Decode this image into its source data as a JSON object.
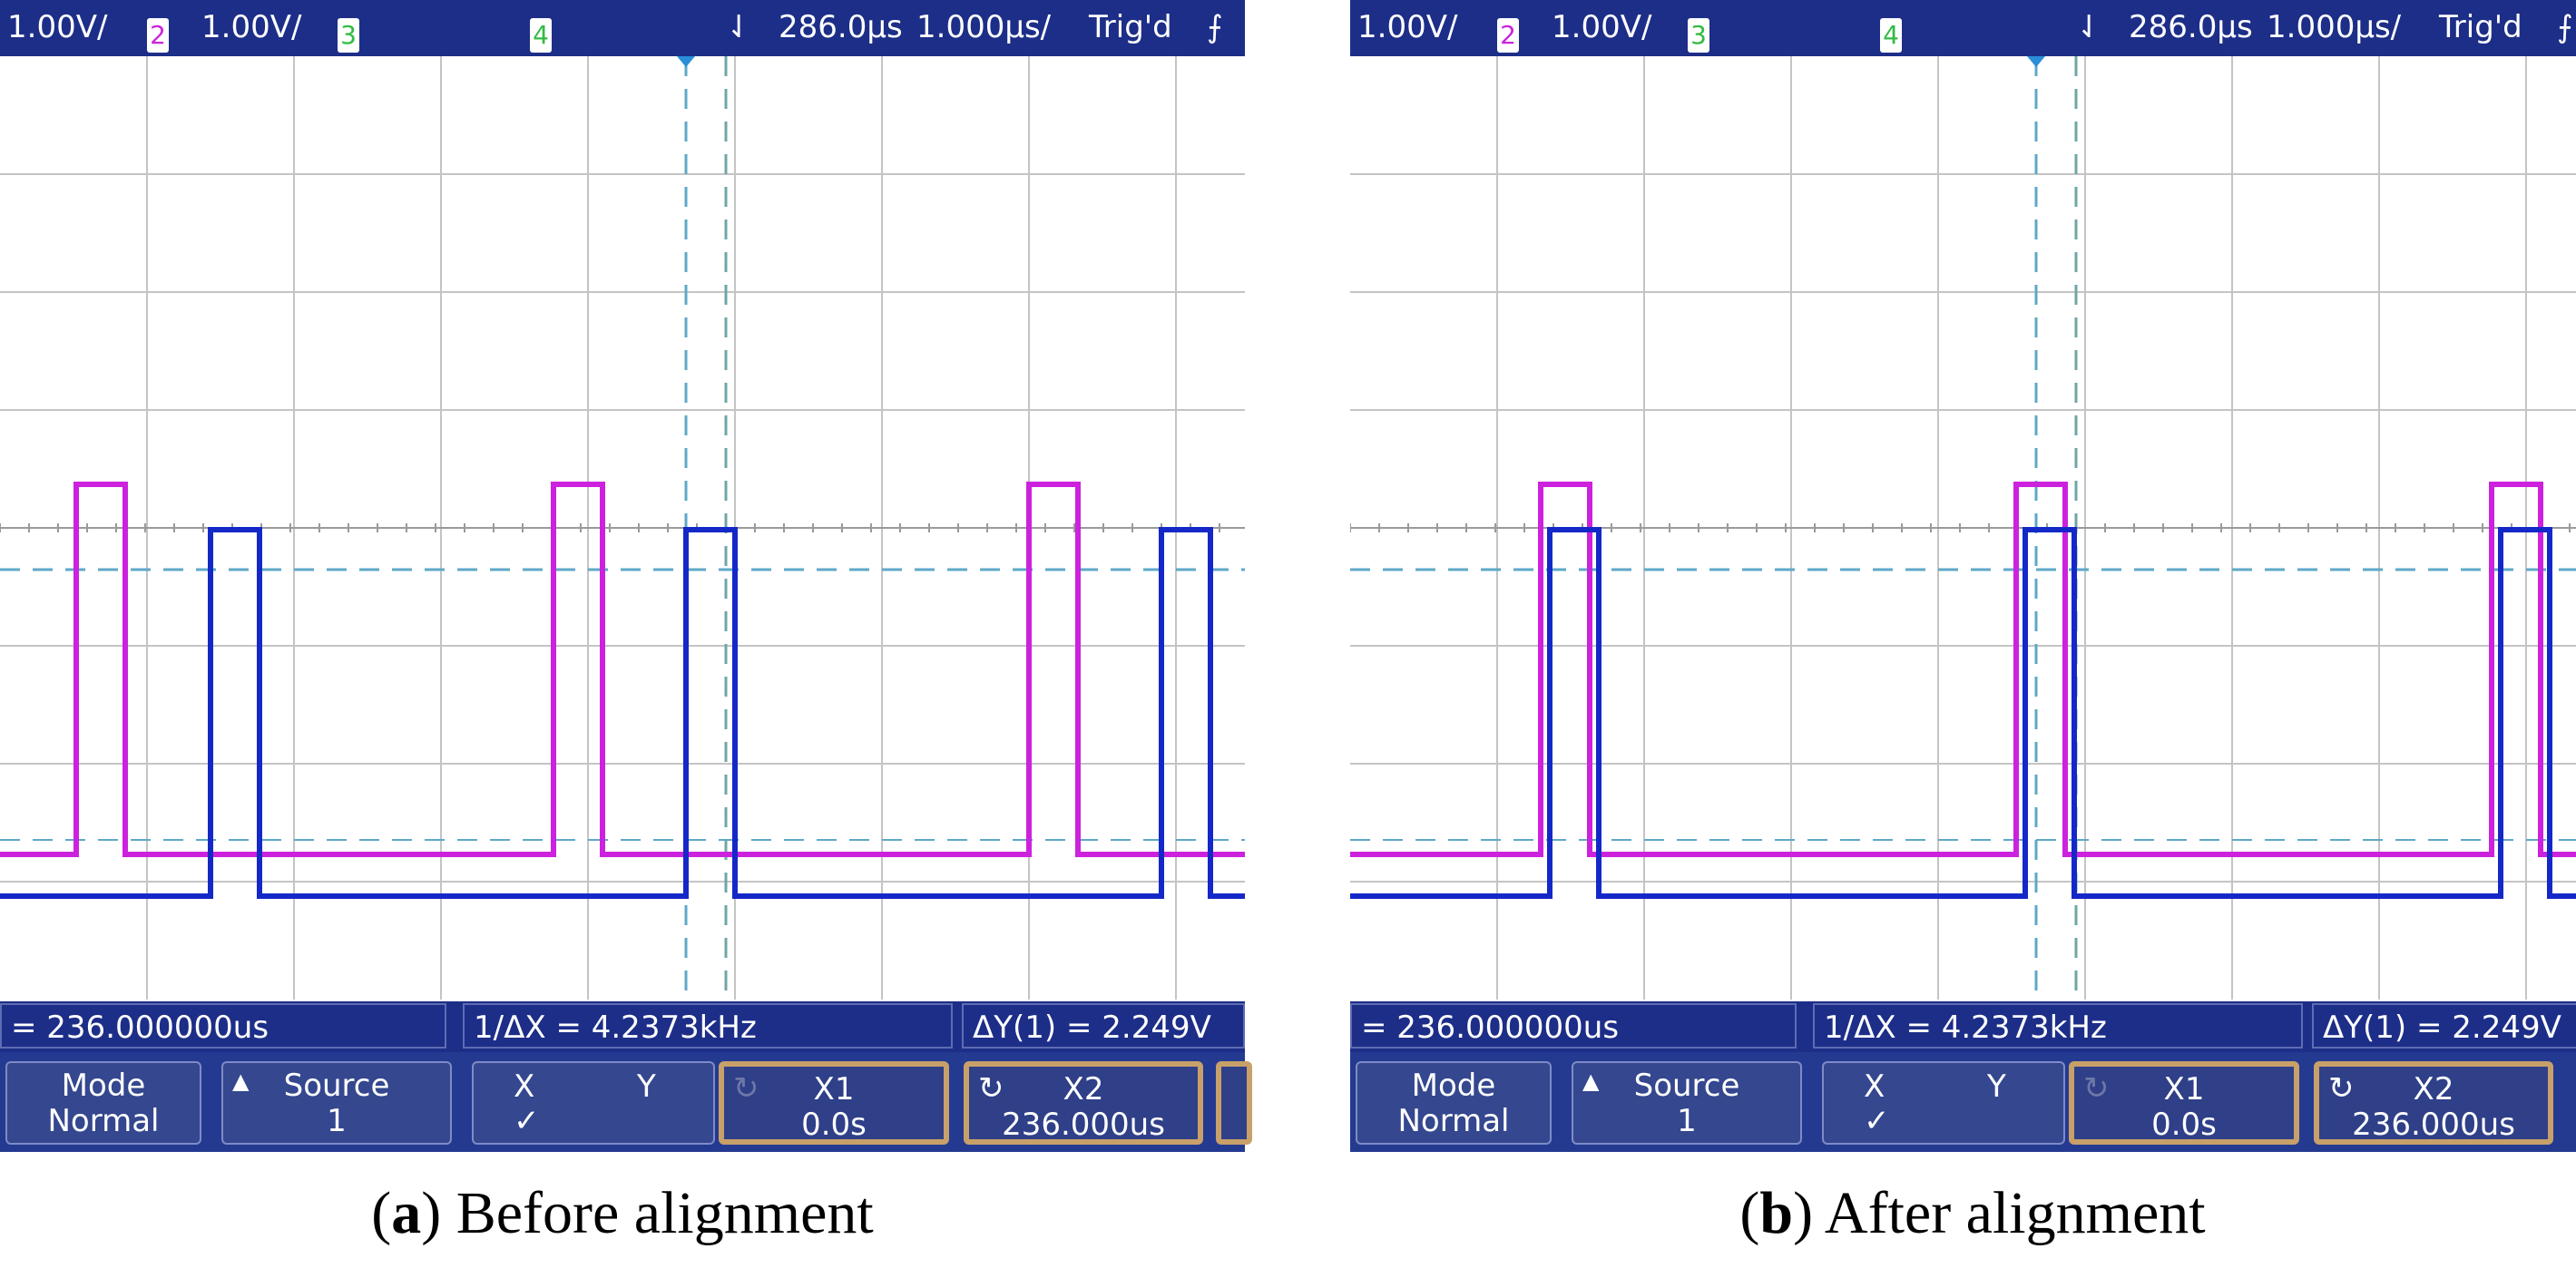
{
  "panels": [
    {
      "caption_letter": "a",
      "caption_text": " Before alignment",
      "topbar": {
        "ch1_scale": "1.00V/",
        "ch2_label": "2",
        "ch2_scale": "1.00V/",
        "ch3_label": "3",
        "ch4_label": "4",
        "delay": "286.0µs",
        "timebase": "1.000µs/",
        "trigger_status": "Trig'd",
        "trigger_icon": "rising-edge-icon"
      },
      "measurements": {
        "delta_x": "= 236.000000us",
        "inverse_delta_x": "1/ΔX = 4.2373kHz",
        "delta_y": "ΔY(1) = 2.249V"
      },
      "softkeys": {
        "mode_label": "Mode",
        "mode_value": "Normal",
        "source_label": "Source",
        "source_value": "1",
        "x_label": "X",
        "y_label": "Y",
        "xy_check": "✓",
        "x1_label": "X1",
        "x1_value": "0.0s",
        "x2_label": "X2",
        "x2_value": "236.000us"
      }
    },
    {
      "caption_letter": "b",
      "caption_text": " After alignment",
      "topbar": {
        "ch1_scale": "1.00V/",
        "ch2_label": "2",
        "ch2_scale": "1.00V/",
        "ch3_label": "3",
        "ch4_label": "4",
        "delay": "286.0µs",
        "timebase": "1.000µs/",
        "trigger_status": "Trig'd",
        "trigger_icon": "rising-edge-icon"
      },
      "measurements": {
        "delta_x": "= 236.000000us",
        "inverse_delta_x": "1/ΔX = 4.2373kHz",
        "delta_y": "ΔY(1) = 2.249V"
      },
      "softkeys": {
        "mode_label": "Mode",
        "mode_value": "Normal",
        "source_label": "Source",
        "source_value": "1",
        "x_label": "X",
        "y_label": "Y",
        "xy_check": "✓",
        "x1_label": "X1",
        "x1_value": "0.0s",
        "x2_label": "X2",
        "x2_value": "236.000us"
      }
    }
  ],
  "colors": {
    "scope_bar": "#1d2e88",
    "channel_magenta": "#cc22dd",
    "channel_blue": "#1428c8",
    "cursor_line": "#5ea8c8",
    "grid": "#c4c4c4"
  }
}
